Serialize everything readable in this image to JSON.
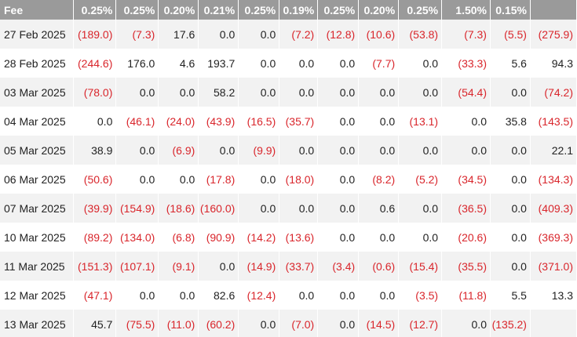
{
  "table": {
    "headers": [
      "Fee",
      "0.25%",
      "0.25%",
      "0.20%",
      "0.21%",
      "0.25%",
      "0.19%",
      "0.25%",
      "0.20%",
      "0.25%",
      "1.50%",
      "0.15%",
      ""
    ],
    "rows": [
      [
        "27 Feb 2025",
        "(189.0)",
        "(7.3)",
        "17.6",
        "0.0",
        "0.0",
        "(7.2)",
        "(12.8)",
        "(10.6)",
        "(53.8)",
        "(7.3)",
        "(5.5)",
        "(275.9)"
      ],
      [
        "28 Feb 2025",
        "(244.6)",
        "176.0",
        "4.6",
        "193.7",
        "0.0",
        "0.0",
        "0.0",
        "(7.7)",
        "0.0",
        "(33.3)",
        "5.6",
        "94.3"
      ],
      [
        "03 Mar 2025",
        "(78.0)",
        "0.0",
        "0.0",
        "58.2",
        "0.0",
        "0.0",
        "0.0",
        "0.0",
        "0.0",
        "(54.4)",
        "0.0",
        "(74.2)"
      ],
      [
        "04 Mar 2025",
        "0.0",
        "(46.1)",
        "(24.0)",
        "(43.9)",
        "(16.5)",
        "(35.7)",
        "0.0",
        "0.0",
        "(13.1)",
        "0.0",
        "35.8",
        "(143.5)"
      ],
      [
        "05 Mar 2025",
        "38.9",
        "0.0",
        "(6.9)",
        "0.0",
        "(9.9)",
        "0.0",
        "0.0",
        "0.0",
        "0.0",
        "0.0",
        "0.0",
        "22.1"
      ],
      [
        "06 Mar 2025",
        "(50.6)",
        "0.0",
        "0.0",
        "(17.8)",
        "0.0",
        "(18.0)",
        "0.0",
        "(8.2)",
        "(5.2)",
        "(34.5)",
        "0.0",
        "(134.3)"
      ],
      [
        "07 Mar 2025",
        "(39.9)",
        "(154.9)",
        "(18.6)",
        "(160.0)",
        "0.0",
        "0.0",
        "0.0",
        "0.6",
        "0.0",
        "(36.5)",
        "0.0",
        "(409.3)"
      ],
      [
        "10 Mar 2025",
        "(89.2)",
        "(134.0)",
        "(6.8)",
        "(90.9)",
        "(14.2)",
        "(13.6)",
        "0.0",
        "0.0",
        "0.0",
        "(20.6)",
        "0.0",
        "(369.3)"
      ],
      [
        "11 Mar 2025",
        "(151.3)",
        "(107.1)",
        "(9.1)",
        "0.0",
        "(14.9)",
        "(33.7)",
        "(3.4)",
        "(0.6)",
        "(15.4)",
        "(35.5)",
        "0.0",
        "(371.0)"
      ],
      [
        "12 Mar 2025",
        "(47.1)",
        "0.0",
        "0.0",
        "82.6",
        "(12.4)",
        "0.0",
        "0.0",
        "0.0",
        "(3.5)",
        "(11.8)",
        "5.5",
        "13.3"
      ],
      [
        "13 Mar 2025",
        "45.7",
        "(75.5)",
        "(11.0)",
        "(60.2)",
        "0.0",
        "(7.0)",
        "0.0",
        "(14.5)",
        "(12.7)",
        "0.0",
        "(135.2)",
        ""
      ]
    ]
  },
  "colors": {
    "header_bg": "#9a9a9a",
    "header_text": "#ffffff",
    "negative": "#d9252b",
    "row_alt": "#f2f2f2"
  }
}
